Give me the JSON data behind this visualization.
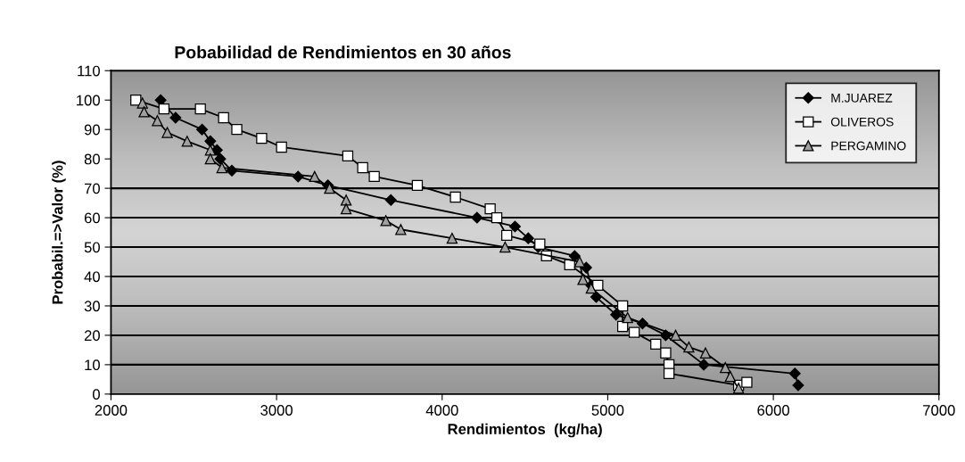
{
  "chart_data": {
    "type": "line",
    "title": "Pobabilidad de Rendimientos en 30 años",
    "xlabel": "Rendimientos  (kg/ha)",
    "ylabel": "Probabil.=>Valor (%)",
    "xlim": [
      2000,
      7000
    ],
    "xticks": [
      2000,
      3000,
      4000,
      5000,
      6000,
      7000
    ],
    "ylim": [
      0,
      110
    ],
    "yticks": [
      0,
      10,
      20,
      30,
      40,
      50,
      60,
      70,
      80,
      90,
      100,
      110
    ],
    "legend": "top right",
    "grid": false,
    "ref_lines": [
      {
        "axis": "y",
        "value": 10
      },
      {
        "axis": "y",
        "value": 20
      },
      {
        "axis": "y",
        "value": 30
      },
      {
        "axis": "y",
        "value": 40
      },
      {
        "axis": "y",
        "value": 50
      },
      {
        "axis": "y",
        "value": 60
      },
      {
        "axis": "y",
        "value": 70
      }
    ],
    "series": [
      {
        "name": "M.JUAREZ",
        "color": "#000000",
        "marker": "diamond",
        "x": [
          2300,
          2390,
          2550,
          2600,
          2640,
          2660,
          2730,
          3130,
          3310,
          3690,
          4210,
          4440,
          4520,
          4580,
          4800,
          4870,
          4900,
          4930,
          5050,
          5210,
          5350,
          5580,
          6130,
          6150
        ],
        "values": [
          100,
          94,
          90,
          86,
          83,
          80,
          76,
          74,
          71,
          66,
          60,
          57,
          53,
          50,
          47,
          43,
          37,
          33,
          27,
          24,
          20,
          10,
          7,
          3
        ]
      },
      {
        "name": "OLIVEROS",
        "color": "#ffffff",
        "marker": "square",
        "x": [
          2150,
          2320,
          2540,
          2680,
          2760,
          2910,
          3030,
          3430,
          3520,
          3590,
          3850,
          4080,
          4290,
          4330,
          4390,
          4590,
          4630,
          4770,
          4940,
          5090,
          5090,
          5160,
          5290,
          5350,
          5370,
          5370,
          5790,
          5840
        ],
        "values": [
          100,
          97,
          97,
          94,
          90,
          87,
          84,
          81,
          77,
          74,
          71,
          67,
          63,
          60,
          54,
          51,
          47,
          44,
          37,
          30,
          23,
          21,
          17,
          14,
          10,
          7,
          3,
          4
        ]
      },
      {
        "name": "PERGAMINO",
        "color": "#a0a0a0",
        "marker": "triangle",
        "x": [
          2190,
          2200,
          2280,
          2340,
          2460,
          2600,
          2600,
          2670,
          3230,
          3320,
          3420,
          3420,
          3660,
          3750,
          4060,
          4380,
          4830,
          4850,
          4900,
          5120,
          5410,
          5490,
          5590,
          5710,
          5740,
          5790
        ],
        "values": [
          99,
          96,
          93,
          89,
          86,
          83,
          80,
          77,
          74,
          70,
          66,
          63,
          59,
          56,
          53,
          50,
          45,
          39,
          36,
          26,
          20,
          16,
          14,
          9,
          6,
          2
        ]
      }
    ]
  }
}
